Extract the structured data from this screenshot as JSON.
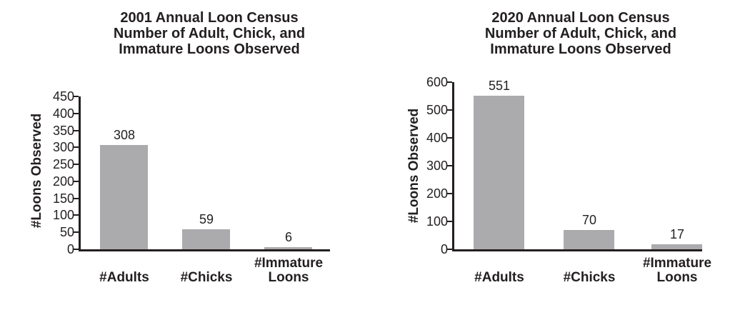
{
  "chart_data": [
    {
      "type": "bar",
      "title": "2001 Annual Loon Census Number of Adult, Chick, and Immature Loons Observed",
      "title_lines": [
        "2001 Annual Loon Census",
        "Number of Adult, Chick, and",
        "Immature Loons Observed"
      ],
      "categories": [
        "#Adults",
        "#Chicks",
        "#Immature Loons"
      ],
      "categories_display": [
        [
          "#Adults"
        ],
        [
          "#Chicks"
        ],
        [
          "#Immature",
          "Loons"
        ]
      ],
      "values": [
        308,
        59,
        6
      ],
      "value_labels": [
        "308",
        "59",
        "6"
      ],
      "xlabel": "",
      "ylabel": "#Loons Observed",
      "ylim": [
        0,
        450
      ],
      "ytick_step": 50,
      "yticks": [
        0,
        50,
        100,
        150,
        200,
        250,
        300,
        350,
        400,
        450
      ],
      "grid": false,
      "legend": false,
      "bar_color": "#ababad",
      "axis_color": "#231f20",
      "text_color": "#231f20"
    },
    {
      "type": "bar",
      "title": "2020 Annual Loon Census Number of Adult, Chick, and Immature Loons Observed",
      "title_lines": [
        "2020 Annual Loon Census",
        "Number of Adult, Chick, and",
        "Immature Loons Observed"
      ],
      "categories": [
        "#Adults",
        "#Chicks",
        "#Immature Loons"
      ],
      "categories_display": [
        [
          "#Adults"
        ],
        [
          "#Chicks"
        ],
        [
          "#Immature",
          "Loons"
        ]
      ],
      "values": [
        551,
        70,
        17
      ],
      "value_labels": [
        "551",
        "70",
        "17"
      ],
      "xlabel": "",
      "ylabel": "#Loons Observed",
      "ylim": [
        0,
        600
      ],
      "ytick_step": 100,
      "yticks": [
        0,
        100,
        200,
        300,
        400,
        500,
        600
      ],
      "grid": false,
      "legend": false,
      "bar_color": "#ababad",
      "axis_color": "#231f20",
      "text_color": "#231f20"
    }
  ]
}
